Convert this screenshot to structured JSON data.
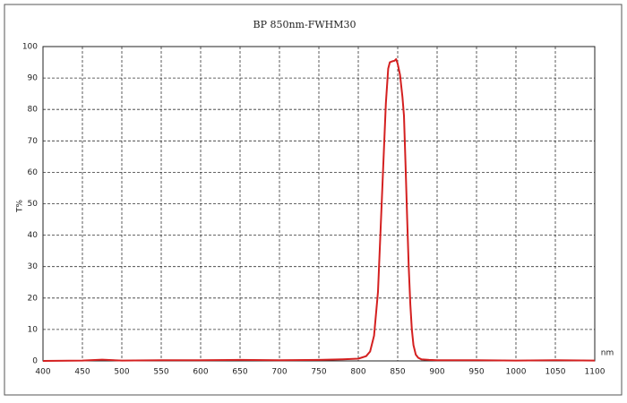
{
  "chart_data": {
    "type": "line",
    "title": "BP 850nm-FWHM30",
    "x_label": "nm",
    "y_label": "T%",
    "x": [
      400,
      450,
      475,
      500,
      550,
      600,
      650,
      700,
      750,
      780,
      800,
      810,
      815,
      820,
      825,
      830,
      835,
      838,
      840,
      843,
      846,
      848,
      850,
      853,
      856,
      858,
      860,
      862,
      864,
      866,
      868,
      870,
      873,
      876,
      880,
      890,
      900,
      950,
      1000,
      1050,
      1100
    ],
    "series": [
      {
        "name": "T%",
        "color": "#d42020",
        "values": [
          0,
          0.1,
          0.4,
          0.1,
          0.2,
          0.2,
          0.3,
          0.2,
          0.3,
          0.5,
          0.7,
          1.5,
          3,
          8,
          22,
          52,
          82,
          93,
          95,
          95.3,
          95.5,
          96,
          94.5,
          91,
          84,
          78,
          62,
          45,
          30,
          18,
          10,
          5,
          2,
          1,
          0.5,
          0.3,
          0.2,
          0.2,
          0.1,
          0.2,
          0.1
        ]
      }
    ],
    "xlim": [
      400,
      1100
    ],
    "ylim": [
      0,
      100
    ],
    "xticks": [
      400,
      450,
      500,
      550,
      600,
      650,
      700,
      750,
      800,
      850,
      900,
      950,
      1000,
      1050,
      1100
    ],
    "yticks": [
      0,
      10,
      20,
      30,
      40,
      50,
      60,
      70,
      80,
      90,
      100
    ],
    "grid": true
  }
}
